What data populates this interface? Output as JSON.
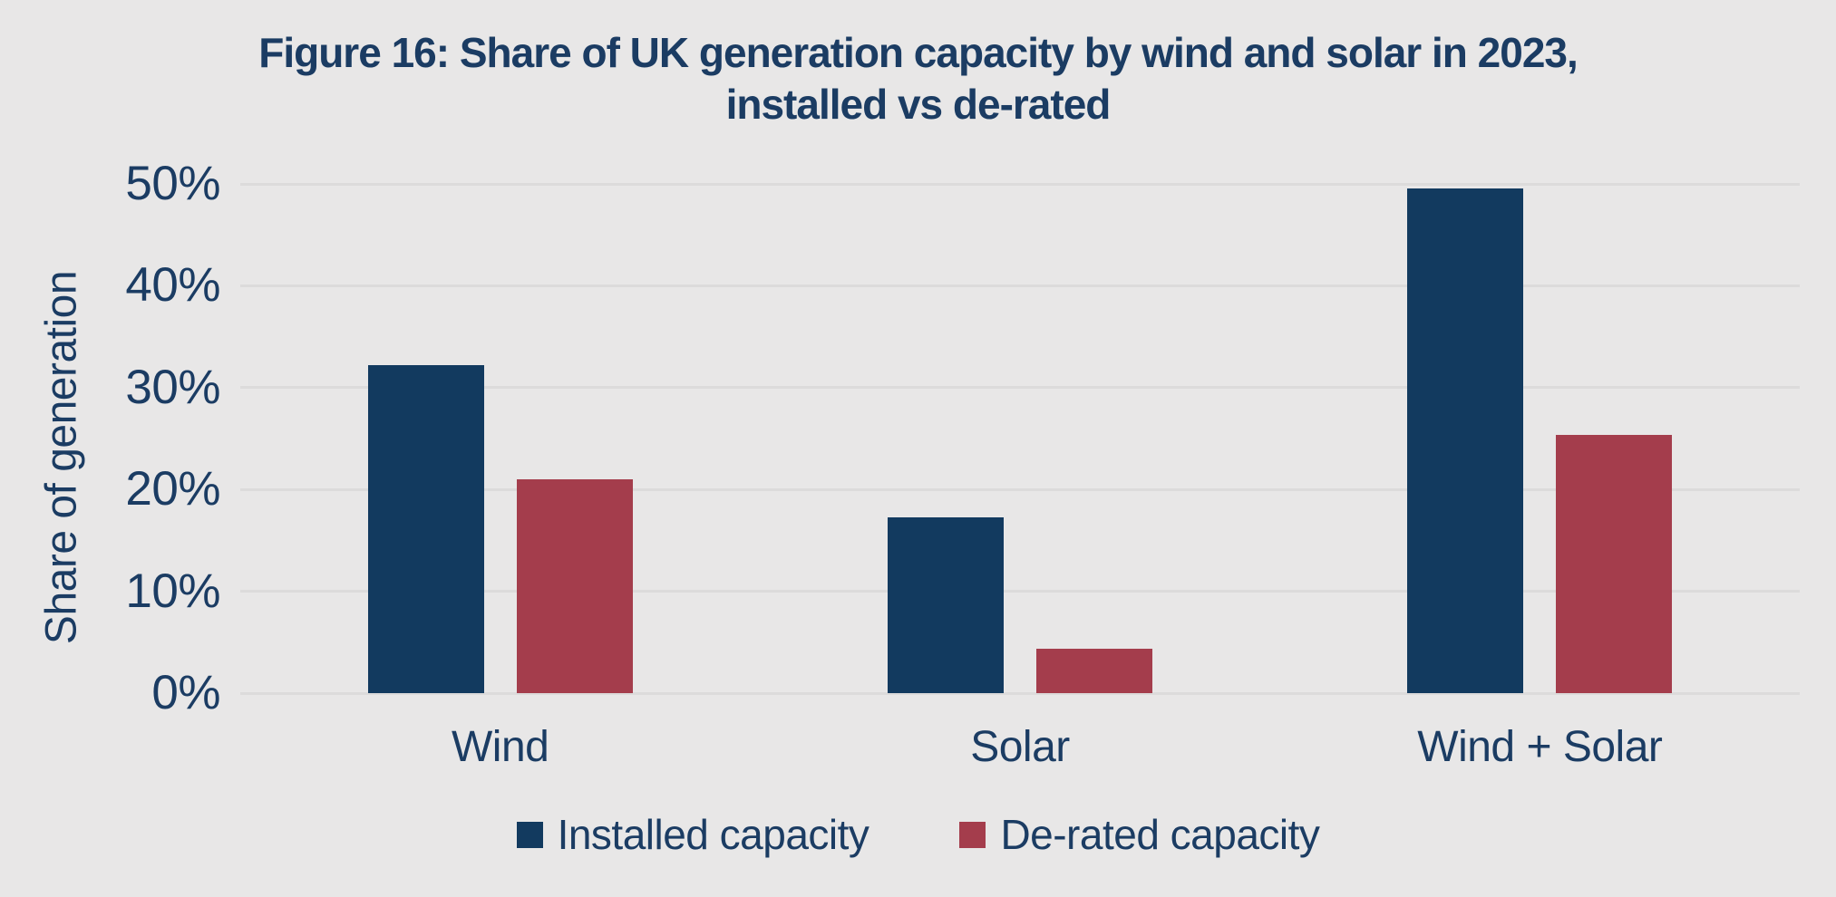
{
  "title": {
    "line1": "Figure 16: Share of UK generation capacity by wind and solar in 2023,",
    "line2": "installed vs de-rated"
  },
  "chart_data": {
    "type": "bar",
    "categories": [
      "Wind",
      "Solar",
      "Wind + Solar"
    ],
    "series": [
      {
        "name": "Installed capacity",
        "color": "#123A5F",
        "values": [
          32.2,
          17.3,
          49.6
        ]
      },
      {
        "name": "De-rated capacity",
        "color": "#A43D4C",
        "values": [
          21.0,
          4.4,
          25.4
        ]
      }
    ],
    "title": "Figure 16: Share of UK generation capacity by wind and solar in 2023, installed vs de-rated",
    "xlabel": "",
    "ylabel": "Share of generation",
    "ylim": [
      0,
      50
    ],
    "yticks": [
      0,
      10,
      20,
      30,
      40,
      50
    ],
    "ytick_labels": [
      "0%",
      "10%",
      "20%",
      "30%",
      "40%",
      "50%"
    ],
    "grid": "horizontal",
    "legend_position": "bottom"
  },
  "colors": {
    "background": "#E8E7E7",
    "gridline": "#DCDBDB",
    "text": "#1B3C63",
    "installed": "#123A5F",
    "derated": "#A43D4C"
  }
}
